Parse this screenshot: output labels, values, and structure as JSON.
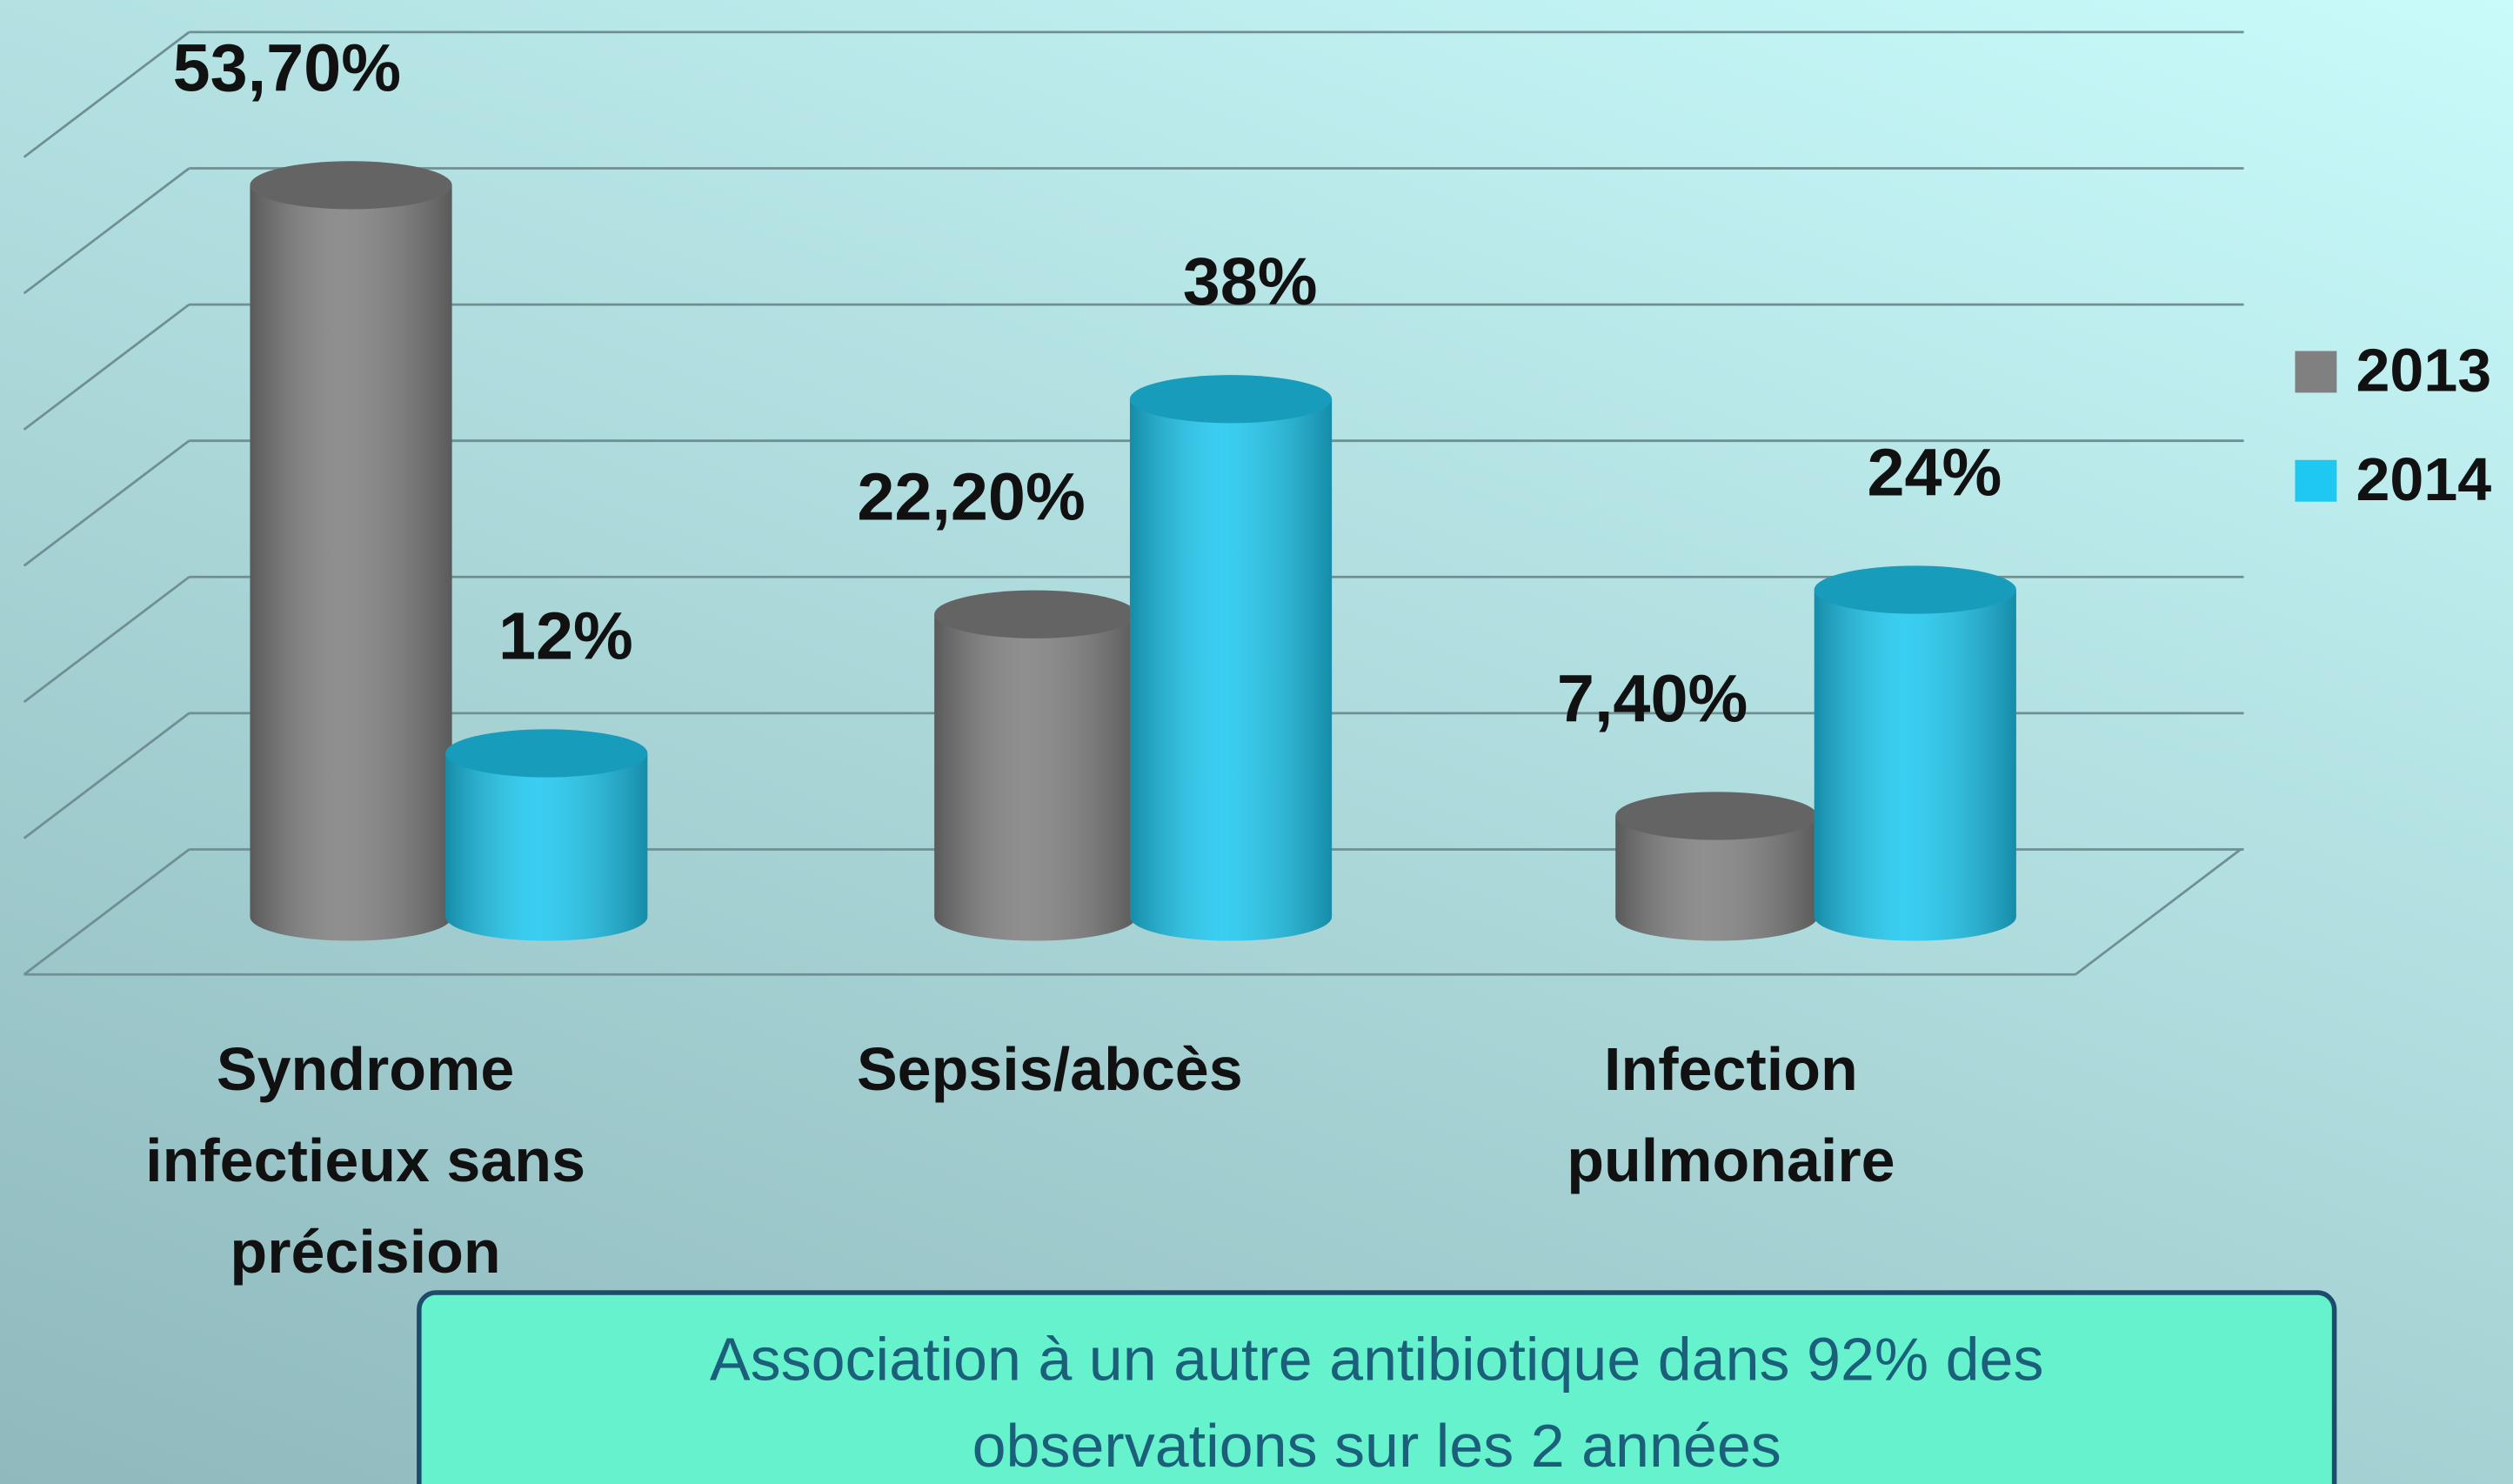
{
  "chart_data": {
    "type": "bar3d",
    "categories": [
      "Syndrome infectieux sans précision",
      "Sepsis/abcès",
      "Infection pulmonaire"
    ],
    "series": [
      {
        "name": "2013",
        "color": "#808080",
        "values": [
          53.7,
          22.2,
          7.4
        ],
        "value_labels": [
          "53,70%",
          "22,20%",
          "7,40%"
        ]
      },
      {
        "name": "2014",
        "color": "#1ec8f0",
        "values": [
          12,
          38,
          24
        ],
        "value_labels": [
          "12%",
          "38%",
          "24%"
        ]
      }
    ],
    "ylim": [
      0,
      60
    ],
    "yticks": [
      0,
      10,
      20,
      30,
      40,
      50,
      60
    ],
    "grid": true,
    "legend": "right",
    "annotation": "Association à un autre antibiotique dans 92% des observations sur les 2 années"
  }
}
